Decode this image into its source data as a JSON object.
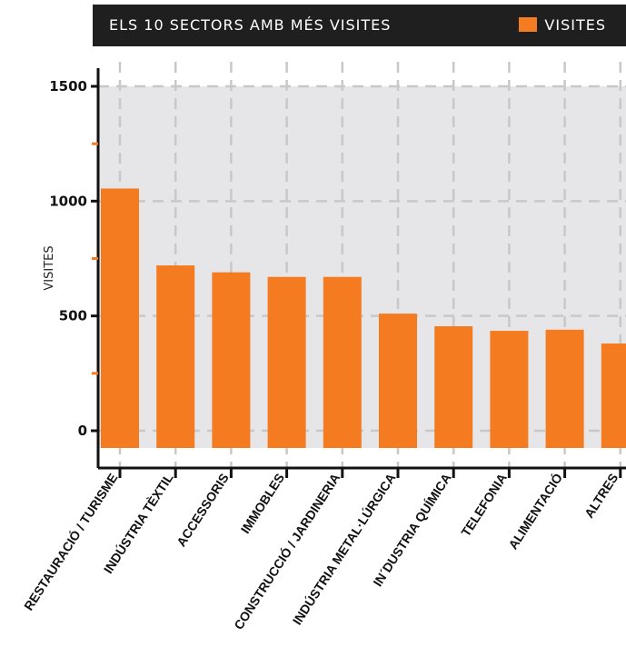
{
  "header": {
    "title": "ELS 10 SECTORS AMB MÉS VISITES",
    "legend_label": "VISITES",
    "background_color": "#1f1f1f"
  },
  "chart_data": {
    "type": "bar",
    "title": "ELS 10 SECTORS AMB MÉS VISITES",
    "ylabel": "VISITES",
    "xlabel": "",
    "ylim": [
      0,
      1500
    ],
    "yticks": [
      0,
      500,
      1000,
      1500
    ],
    "grid": true,
    "legend_position": "top-right",
    "bar_color": "#f47b20",
    "plot_background": "#e6e6e8",
    "categories": [
      "RESTAURACIÓ / TURISME",
      "INDÚSTRIA TÈXTIL",
      "ACCESSORIS",
      "IMMOBLES",
      "CONSTRUCCIÓ / JARDINERIA",
      "INDÚSTRIA METAL·LÚRGICA",
      "IN´DUSTRIA QUÍMICA",
      "TELEFONIA",
      "ALIMENTACIÓ",
      "ALTRES"
    ],
    "series": [
      {
        "name": "VISITES",
        "values": [
          1055,
          720,
          690,
          670,
          670,
          510,
          455,
          435,
          440,
          380
        ]
      }
    ]
  }
}
